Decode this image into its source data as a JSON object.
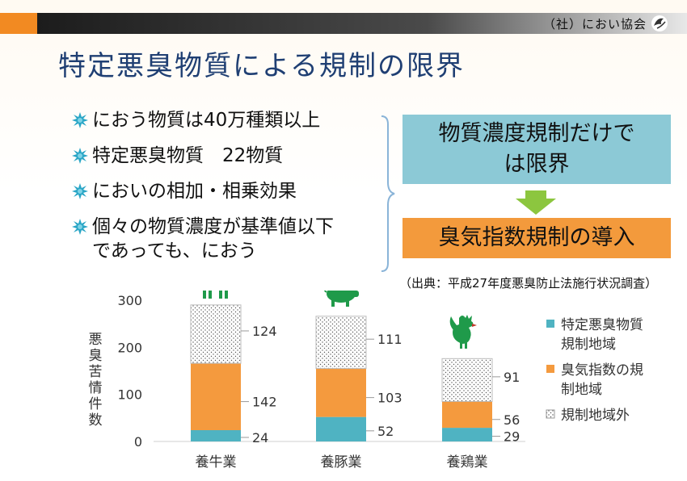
{
  "header": {
    "organization": "（社）におい協会"
  },
  "title": "特定悪臭物質による規制の限界",
  "bullets": [
    "におう物質は40万種類以上",
    "特定悪臭物質　22物質",
    "においの相加・相乗効果",
    "個々の物質濃度が基準値以下\nであっても、におう"
  ],
  "callouts": {
    "limit": "物質濃度規制だけでは限界",
    "limit_lines": [
      "物質濃度規制だけで",
      "は限界"
    ],
    "introduction": "臭気指数規制の導入"
  },
  "source": "（出典：平成27年度悪臭防止法施行状況調査）",
  "icons": [
    "cow-icon",
    "pig-icon",
    "rooster-icon"
  ],
  "colors": {
    "accent_orange": "#f28a22",
    "title_blue": "#1f3f73",
    "box_blue": "#8cc9d6",
    "box_orange": "#f39a3c",
    "arrow_green": "#8cc63f",
    "series_teal": "#4fb3c2",
    "series_orange": "#f49a3e"
  },
  "chart_data": {
    "type": "bar",
    "stacked": true,
    "categories": [
      "養牛業",
      "養豚業",
      "養鶏業"
    ],
    "series": [
      {
        "name": "特定悪臭物質規制地域",
        "legend_lines": [
          "特定悪臭物質",
          "規制地域"
        ],
        "values": [
          24,
          52,
          29
        ],
        "color": "#4fb3c2"
      },
      {
        "name": "臭気指数の規制地域",
        "legend_lines": [
          "臭気指数の規",
          "制地域"
        ],
        "values": [
          142,
          103,
          56
        ],
        "color": "#f49a3e"
      },
      {
        "name": "規制地域外",
        "legend_lines": [
          "規制地域外"
        ],
        "values": [
          124,
          111,
          91
        ],
        "color": "#ffffff",
        "pattern": "dotted"
      }
    ],
    "ylabel": "悪臭苦情件数",
    "ylim": [
      0,
      300
    ],
    "yticks": [
      0,
      100,
      200,
      300
    ],
    "legend_position": "right",
    "grid": false
  }
}
